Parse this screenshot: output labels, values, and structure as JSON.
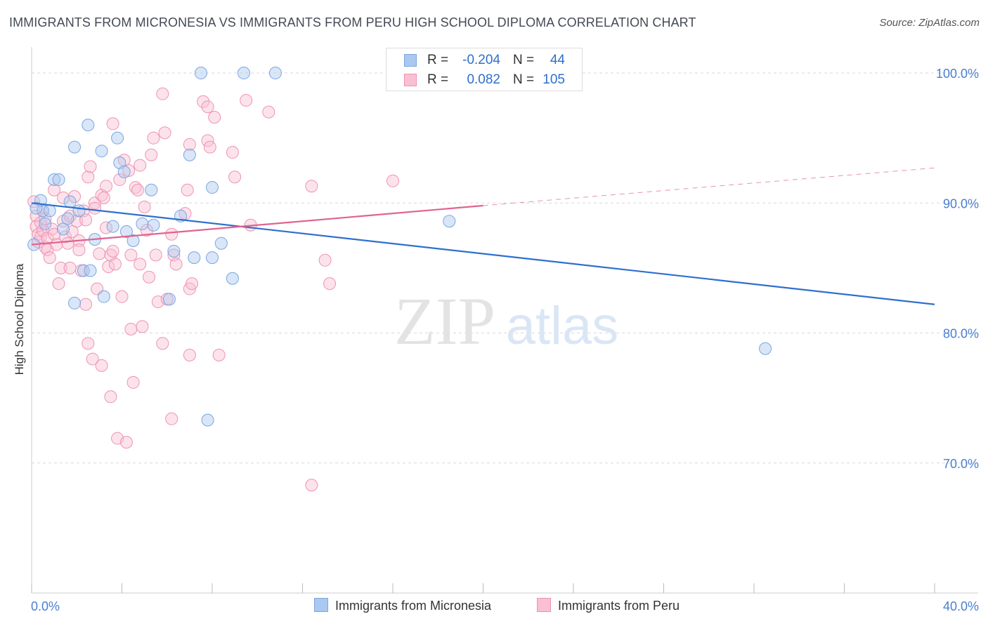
{
  "title": "IMMIGRANTS FROM MICRONESIA VS IMMIGRANTS FROM PERU HIGH SCHOOL DIPLOMA CORRELATION CHART",
  "source": "Source: ZipAtlas.com",
  "watermark": {
    "zip": "ZIP",
    "atlas": "atlas"
  },
  "stats": {
    "rows": [
      {
        "r_label": "R =",
        "r_value": "-0.204",
        "n_label": "N =",
        "n_value": "44"
      },
      {
        "r_label": "R =",
        "r_value": "0.082",
        "n_label": "N =",
        "n_value": "105"
      }
    ]
  },
  "legend": {
    "items": [
      {
        "label": "Immigrants from Micronesia"
      },
      {
        "label": "Immigrants from Peru"
      }
    ]
  },
  "colors": {
    "blue_fill": "#aac8f0",
    "blue_stroke": "#7aa6e0",
    "blue_line": "#2e6fce",
    "pink_fill": "#f8c0d2",
    "pink_stroke": "#ee93b3",
    "pink_line": "#e0638f",
    "value_text": "#2e6fce",
    "axis_text": "#4a7fcf"
  },
  "chart_data": {
    "type": "scatter",
    "title": "IMMIGRANTS FROM MICRONESIA VS IMMIGRANTS FROM PERU HIGH SCHOOL DIPLOMA CORRELATION CHART",
    "xlabel": "",
    "ylabel": "High School Diploma",
    "xlim": [
      0,
      40
    ],
    "ylim": [
      60,
      102
    ],
    "x_tick_labels": [
      "0.0%",
      "40.0%"
    ],
    "y_tick_labels": [
      "100.0%",
      "90.0%",
      "80.0%",
      "70.0%"
    ],
    "y_gridlines": [
      100,
      90,
      80,
      70
    ],
    "grid": "horizontal dashed",
    "legend_position": "bottom-center",
    "series": [
      {
        "name": "Immigrants from Micronesia",
        "color": "#aac8f0",
        "points": [
          [
            0.1,
            86.8
          ],
          [
            0.4,
            90.2
          ],
          [
            0.5,
            89.4
          ],
          [
            0.6,
            88.4
          ],
          [
            0.8,
            89.4
          ],
          [
            1.0,
            91.8
          ],
          [
            1.2,
            91.8
          ],
          [
            1.4,
            88.0
          ],
          [
            1.6,
            88.8
          ],
          [
            1.7,
            90.1
          ],
          [
            1.9,
            82.3
          ],
          [
            1.9,
            94.3
          ],
          [
            2.1,
            89.4
          ],
          [
            2.3,
            84.8
          ],
          [
            2.5,
            96.0
          ],
          [
            2.6,
            84.8
          ],
          [
            2.8,
            87.2
          ],
          [
            3.1,
            94.0
          ],
          [
            3.2,
            82.8
          ],
          [
            3.6,
            88.2
          ],
          [
            3.8,
            95.0
          ],
          [
            3.9,
            93.1
          ],
          [
            4.1,
            92.4
          ],
          [
            4.2,
            87.8
          ],
          [
            4.5,
            87.1
          ],
          [
            4.9,
            88.4
          ],
          [
            5.3,
            91.0
          ],
          [
            5.4,
            88.3
          ],
          [
            6.1,
            82.6
          ],
          [
            6.3,
            86.3
          ],
          [
            6.6,
            89.0
          ],
          [
            7.0,
            93.7
          ],
          [
            7.2,
            85.8
          ],
          [
            7.5,
            100.0
          ],
          [
            7.8,
            73.3
          ],
          [
            8.0,
            85.8
          ],
          [
            8.0,
            91.2
          ],
          [
            8.4,
            86.9
          ],
          [
            8.9,
            84.2
          ],
          [
            9.4,
            100.0
          ],
          [
            10.8,
            100.0
          ],
          [
            18.5,
            88.6
          ],
          [
            32.5,
            78.8
          ],
          [
            0.2,
            89.6
          ]
        ]
      },
      {
        "name": "Immigrants from Peru",
        "color": "#f8c0d2",
        "points": [
          [
            0.1,
            90.1
          ],
          [
            0.2,
            89.0
          ],
          [
            0.2,
            88.2
          ],
          [
            0.3,
            87.6
          ],
          [
            0.3,
            87.0
          ],
          [
            0.4,
            88.5
          ],
          [
            0.4,
            87.4
          ],
          [
            0.5,
            89.4
          ],
          [
            0.5,
            87.9
          ],
          [
            0.6,
            86.6
          ],
          [
            0.6,
            88.8
          ],
          [
            0.7,
            87.3
          ],
          [
            0.7,
            86.4
          ],
          [
            0.8,
            85.8
          ],
          [
            0.9,
            88.0
          ],
          [
            1.0,
            91.0
          ],
          [
            1.0,
            87.6
          ],
          [
            1.1,
            86.8
          ],
          [
            1.2,
            83.8
          ],
          [
            1.3,
            85.0
          ],
          [
            1.4,
            90.4
          ],
          [
            1.4,
            88.6
          ],
          [
            1.5,
            87.4
          ],
          [
            1.6,
            86.9
          ],
          [
            1.7,
            85.0
          ],
          [
            1.7,
            89.0
          ],
          [
            1.8,
            87.8
          ],
          [
            1.9,
            90.5
          ],
          [
            2.0,
            88.6
          ],
          [
            2.1,
            87.1
          ],
          [
            2.1,
            86.4
          ],
          [
            2.2,
            84.8
          ],
          [
            2.3,
            89.4
          ],
          [
            2.4,
            88.7
          ],
          [
            2.4,
            82.2
          ],
          [
            2.5,
            79.2
          ],
          [
            2.5,
            92.0
          ],
          [
            2.6,
            92.8
          ],
          [
            2.7,
            78.0
          ],
          [
            2.8,
            90.0
          ],
          [
            2.8,
            89.6
          ],
          [
            2.9,
            83.4
          ],
          [
            3.0,
            86.1
          ],
          [
            3.1,
            90.6
          ],
          [
            3.1,
            77.5
          ],
          [
            3.2,
            90.4
          ],
          [
            3.3,
            91.3
          ],
          [
            3.3,
            88.1
          ],
          [
            3.4,
            85.1
          ],
          [
            3.5,
            86.0
          ],
          [
            3.5,
            75.1
          ],
          [
            3.6,
            96.1
          ],
          [
            3.6,
            86.3
          ],
          [
            3.7,
            85.3
          ],
          [
            3.8,
            71.9
          ],
          [
            3.9,
            91.8
          ],
          [
            4.0,
            82.8
          ],
          [
            4.1,
            93.3
          ],
          [
            4.2,
            71.6
          ],
          [
            4.3,
            92.5
          ],
          [
            4.4,
            86.0
          ],
          [
            4.4,
            80.3
          ],
          [
            4.5,
            76.2
          ],
          [
            4.6,
            91.2
          ],
          [
            4.7,
            91.0
          ],
          [
            4.8,
            85.3
          ],
          [
            4.8,
            92.9
          ],
          [
            4.9,
            80.5
          ],
          [
            5.0,
            89.7
          ],
          [
            5.1,
            87.9
          ],
          [
            5.2,
            84.3
          ],
          [
            5.3,
            93.7
          ],
          [
            5.4,
            95.0
          ],
          [
            5.5,
            86.0
          ],
          [
            5.6,
            82.4
          ],
          [
            5.8,
            79.2
          ],
          [
            5.8,
            98.4
          ],
          [
            5.9,
            95.4
          ],
          [
            6.0,
            82.6
          ],
          [
            6.2,
            73.4
          ],
          [
            6.2,
            87.6
          ],
          [
            6.3,
            86.0
          ],
          [
            6.4,
            85.3
          ],
          [
            6.8,
            89.2
          ],
          [
            6.9,
            91.0
          ],
          [
            7.0,
            94.5
          ],
          [
            7.0,
            83.4
          ],
          [
            7.0,
            78.3
          ],
          [
            7.1,
            83.8
          ],
          [
            7.6,
            97.8
          ],
          [
            7.8,
            94.8
          ],
          [
            7.8,
            97.4
          ],
          [
            7.9,
            94.3
          ],
          [
            8.1,
            96.6
          ],
          [
            8.3,
            78.3
          ],
          [
            8.9,
            93.9
          ],
          [
            9.0,
            92.0
          ],
          [
            9.5,
            97.9
          ],
          [
            9.7,
            88.3
          ],
          [
            10.5,
            97.0
          ],
          [
            12.4,
            91.3
          ],
          [
            12.4,
            68.3
          ],
          [
            13.0,
            85.6
          ],
          [
            13.2,
            83.8
          ],
          [
            16.0,
            91.7
          ]
        ]
      }
    ],
    "trend_lines": [
      {
        "series": "Immigrants from Micronesia",
        "from": [
          0,
          90.0
        ],
        "to": [
          40,
          82.2
        ],
        "style": "solid"
      },
      {
        "series": "Immigrants from Peru",
        "from": [
          0,
          86.8
        ],
        "to": [
          20,
          89.8
        ],
        "style": "solid"
      },
      {
        "series": "Immigrants from Peru",
        "from": [
          20,
          89.8
        ],
        "to": [
          40,
          92.7
        ],
        "style": "dashed"
      }
    ]
  }
}
